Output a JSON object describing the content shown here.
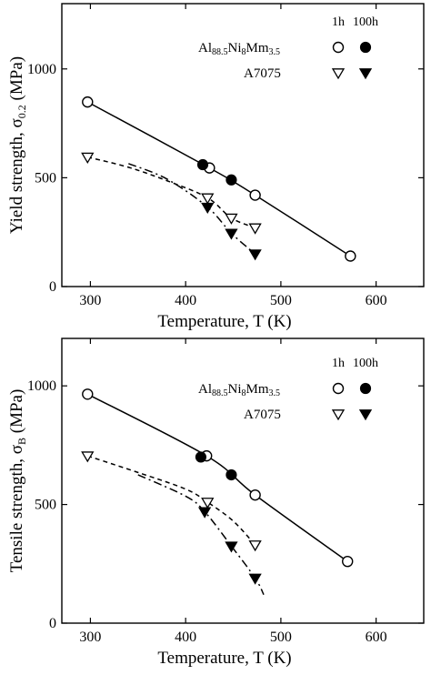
{
  "chart_data": [
    {
      "type": "scatter",
      "title": "",
      "xlabel": "Temperature, T (K)",
      "ylabel": "Yield strength, σ0.2 (MPa)",
      "ylabel_main": "Yield strength, σ",
      "ylabel_sub": "0.2",
      "ylabel_unit": " (MPa)",
      "xlim": [
        270,
        650
      ],
      "ylim": [
        0,
        1300
      ],
      "xticks": [
        300,
        400,
        500,
        600
      ],
      "yticks": [
        0,
        500,
        1000
      ],
      "legend": {
        "placement": "top-right",
        "col_headers": [
          "1h",
          "100h"
        ],
        "entries": [
          {
            "main": "Al",
            "sub1": "88.5",
            "mid": "Ni",
            "sub2": "8",
            "tail": "Mm",
            "sub3": "3.5"
          },
          {
            "main": "A7075"
          }
        ]
      },
      "series": [
        {
          "name": "Al88.5Ni8Mm3.5 1h",
          "marker": "open-circle",
          "line": "solid",
          "x": [
            297,
            425,
            473,
            573
          ],
          "y": [
            848,
            545,
            420,
            140
          ]
        },
        {
          "name": "Al88.5Ni8Mm3.5 100h",
          "marker": "filled-circle",
          "line": "none",
          "x": [
            418,
            448
          ],
          "y": [
            560,
            490
          ]
        },
        {
          "name": "A7075 1h",
          "marker": "open-triangle",
          "line": "dashed",
          "x": [
            297,
            423,
            448,
            473
          ],
          "y": [
            595,
            408,
            315,
            270
          ]
        },
        {
          "name": "A7075 100h",
          "marker": "filled-triangle",
          "line": "dashdot",
          "x": [
            423,
            448,
            473
          ],
          "y": [
            365,
            245,
            150
          ]
        }
      ],
      "curves": [
        {
          "style": "solid",
          "x": [
            297,
            425,
            473,
            573
          ],
          "y": [
            848,
            545,
            420,
            140
          ]
        },
        {
          "style": "dashed",
          "x": [
            297,
            340,
            380,
            423,
            448,
            473
          ],
          "y": [
            595,
            548,
            487,
            408,
            315,
            270
          ]
        },
        {
          "style": "dashdot",
          "x": [
            340,
            380,
            423,
            448,
            473
          ],
          "y": [
            565,
            495,
            365,
            245,
            150
          ]
        }
      ]
    },
    {
      "type": "scatter",
      "title": "",
      "xlabel": "Temperature, T (K)",
      "ylabel": "Tensile strength, σB (MPa)",
      "ylabel_main": "Tensile strength, σ",
      "ylabel_sub": "B",
      "ylabel_unit": " (MPa)",
      "xlim": [
        270,
        650
      ],
      "ylim": [
        0,
        1200
      ],
      "xticks": [
        300,
        400,
        500,
        600
      ],
      "yticks": [
        0,
        500,
        1000
      ],
      "legend": {
        "placement": "top-right",
        "col_headers": [
          "1h",
          "100h"
        ],
        "entries": [
          {
            "main": "Al",
            "sub1": "88.5",
            "mid": "Ni",
            "sub2": "8",
            "tail": "Mm",
            "sub3": "3.5"
          },
          {
            "main": "A7075"
          }
        ]
      },
      "series": [
        {
          "name": "Al88.5Ni8Mm3.5 1h",
          "marker": "open-circle",
          "line": "solid",
          "x": [
            297,
            422,
            473,
            570
          ],
          "y": [
            965,
            705,
            540,
            260
          ]
        },
        {
          "name": "Al88.5Ni8Mm3.5 100h",
          "marker": "filled-circle",
          "line": "none",
          "x": [
            416,
            448
          ],
          "y": [
            700,
            625
          ]
        },
        {
          "name": "A7075 1h",
          "marker": "open-triangle",
          "line": "dashed",
          "x": [
            297,
            423,
            473
          ],
          "y": [
            705,
            510,
            330
          ]
        },
        {
          "name": "A7075 100h",
          "marker": "filled-triangle",
          "line": "dashdot",
          "x": [
            420,
            448,
            473
          ],
          "y": [
            470,
            325,
            190
          ]
        }
      ],
      "curves": [
        {
          "style": "solid",
          "x": [
            297,
            422,
            473,
            570
          ],
          "y": [
            965,
            705,
            540,
            260
          ]
        },
        {
          "style": "dashed",
          "x": [
            297,
            350,
            400,
            423,
            450,
            473
          ],
          "y": [
            705,
            635,
            565,
            510,
            430,
            330
          ]
        },
        {
          "style": "dashdot",
          "x": [
            350,
            400,
            420,
            448,
            473,
            482
          ],
          "y": [
            625,
            535,
            470,
            325,
            190,
            120
          ]
        }
      ]
    }
  ]
}
